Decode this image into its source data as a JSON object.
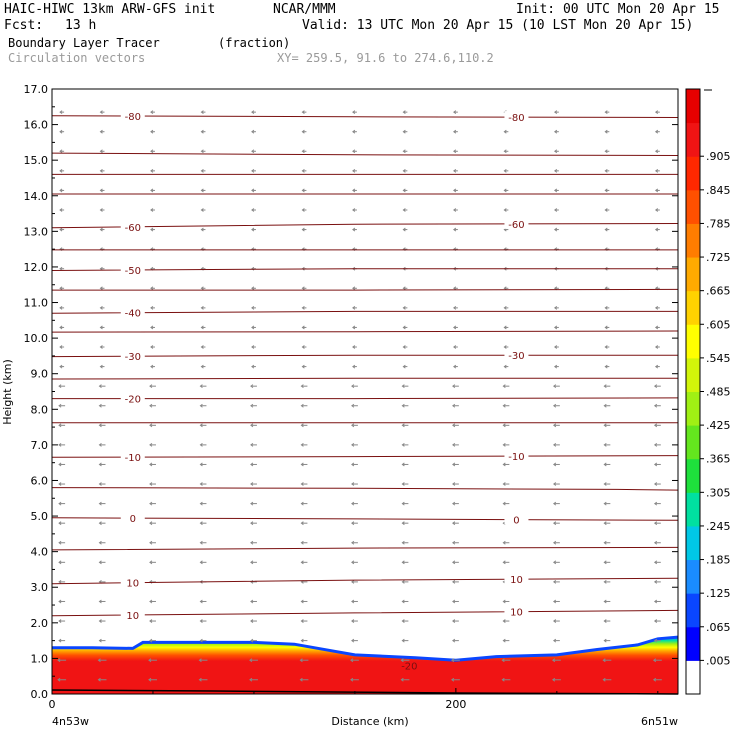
{
  "header": {
    "title": "HAIC-HIWC 13km ARW-GFS init",
    "org": "NCAR/MMM",
    "init": "Init: 00 UTC Mon 20 Apr 15",
    "fcst_label": "Fcst:",
    "fcst_value": "13 h",
    "valid": "Valid: 13 UTC Mon 20 Apr 15 (10 LST Mon 20 Apr 15)",
    "field": "Boundary Layer Tracer",
    "field_units": "(fraction)",
    "vectors": "Circulation vectors",
    "xy": "XY= 259.5, 91.6 to 274.6,110.2"
  },
  "colors": {
    "contour": "#7a1010",
    "vector": "#888888"
  },
  "chart_data": {
    "type": "heatmap",
    "ylabel": "Height (km)",
    "xlabel": "Distance (km)",
    "ylim": [
      0,
      17
    ],
    "xlim": [
      0,
      310
    ],
    "yticks": [
      "0.0",
      "1.0",
      "2.0",
      "3.0",
      "4.0",
      "5.0",
      "6.0",
      "7.0",
      "8.0",
      "9.0",
      "10.0",
      "11.0",
      "12.0",
      "13.0",
      "14.0",
      "15.0",
      "16.0",
      "17.0"
    ],
    "xticks": [
      "0",
      "200"
    ],
    "x_end_labels": {
      "left": "4n53w",
      "right": "6n51w"
    },
    "colorbar": {
      "labels": [
        ".005",
        ".065",
        ".125",
        ".185",
        ".245",
        ".305",
        ".365",
        ".425",
        ".485",
        ".545",
        ".605",
        ".665",
        ".725",
        ".785",
        ".845",
        ".905"
      ],
      "colors": [
        "#ffffff",
        "#0000ff",
        "#0a46ff",
        "#1a8cff",
        "#00c8e6",
        "#00e0a0",
        "#1ee03c",
        "#64e61e",
        "#a0f014",
        "#d2f50a",
        "#ffff00",
        "#ffd200",
        "#ffaa00",
        "#ff7d00",
        "#ff5000",
        "#ff2800",
        "#f01414",
        "#e60000"
      ]
    },
    "tracer_top_km": [
      {
        "x": 0,
        "z": 1.3
      },
      {
        "x": 20,
        "z": 1.3
      },
      {
        "x": 40,
        "z": 1.28
      },
      {
        "x": 45,
        "z": 1.45
      },
      {
        "x": 100,
        "z": 1.45
      },
      {
        "x": 120,
        "z": 1.4
      },
      {
        "x": 140,
        "z": 1.2
      },
      {
        "x": 150,
        "z": 1.1
      },
      {
        "x": 180,
        "z": 1.02
      },
      {
        "x": 200,
        "z": 0.95
      },
      {
        "x": 220,
        "z": 1.05
      },
      {
        "x": 250,
        "z": 1.1
      },
      {
        "x": 270,
        "z": 1.25
      },
      {
        "x": 290,
        "z": 1.38
      },
      {
        "x": 300,
        "z": 1.55
      },
      {
        "x": 310,
        "z": 1.6
      }
    ],
    "temperature_contours_C": [
      {
        "value": 10,
        "labels": [
          "10",
          "10"
        ],
        "heights": [
          [
            0,
            2.2
          ],
          [
            150,
            2.28
          ],
          [
            310,
            2.35
          ]
        ]
      },
      {
        "value": 10,
        "labels": [
          "10",
          "10"
        ],
        "heights": [
          [
            0,
            3.1
          ],
          [
            150,
            3.2
          ],
          [
            310,
            3.25
          ]
        ]
      },
      {
        "value": 0,
        "labels": [],
        "heights": [
          [
            0,
            4.05
          ],
          [
            150,
            4.1
          ],
          [
            310,
            4.12
          ]
        ]
      },
      {
        "value": 0,
        "labels": [
          "0",
          "0"
        ],
        "heights": [
          [
            0,
            4.95
          ],
          [
            150,
            4.92
          ],
          [
            310,
            4.88
          ]
        ]
      },
      {
        "value": -10,
        "labels": [],
        "heights": [
          [
            0,
            5.8
          ],
          [
            150,
            5.78
          ],
          [
            280,
            5.75
          ],
          [
            310,
            5.73
          ]
        ]
      },
      {
        "value": -10,
        "labels": [
          "-10",
          "-10"
        ],
        "heights": [
          [
            0,
            6.65
          ],
          [
            150,
            6.67
          ],
          [
            310,
            6.7
          ]
        ]
      },
      {
        "value": -20,
        "labels": [],
        "heights": [
          [
            0,
            7.62
          ],
          [
            150,
            7.62
          ],
          [
            310,
            7.62
          ]
        ]
      },
      {
        "value": -20,
        "labels": [
          "-20"
        ],
        "heights": [
          [
            0,
            8.3
          ],
          [
            150,
            8.3
          ],
          [
            310,
            8.32
          ]
        ]
      },
      {
        "value": -30,
        "labels": [],
        "heights": [
          [
            0,
            8.85
          ],
          [
            150,
            8.87
          ],
          [
            310,
            8.87
          ]
        ]
      },
      {
        "value": -30,
        "labels": [
          "-30",
          "-30"
        ],
        "heights": [
          [
            0,
            9.48
          ],
          [
            150,
            9.52
          ],
          [
            310,
            9.52
          ]
        ]
      },
      {
        "value": -40,
        "labels": [],
        "heights": [
          [
            0,
            10.17
          ],
          [
            150,
            10.18
          ],
          [
            310,
            10.2
          ]
        ]
      },
      {
        "value": -40,
        "labels": [
          "-40"
        ],
        "heights": [
          [
            0,
            10.7
          ],
          [
            150,
            10.75
          ],
          [
            310,
            10.75
          ]
        ]
      },
      {
        "value": -50,
        "labels": [],
        "heights": [
          [
            0,
            11.35
          ],
          [
            150,
            11.35
          ],
          [
            310,
            11.37
          ]
        ]
      },
      {
        "value": -50,
        "labels": [
          "-50"
        ],
        "heights": [
          [
            0,
            11.9
          ],
          [
            150,
            11.95
          ],
          [
            310,
            11.95
          ]
        ]
      },
      {
        "value": -60,
        "labels": [],
        "heights": [
          [
            0,
            12.48
          ],
          [
            150,
            12.48
          ],
          [
            310,
            12.48
          ]
        ]
      },
      {
        "value": -60,
        "labels": [
          "-60",
          "-60"
        ],
        "heights": [
          [
            0,
            13.1
          ],
          [
            150,
            13.2
          ],
          [
            310,
            13.22
          ]
        ]
      },
      {
        "value": -70,
        "labels": [],
        "heights": [
          [
            0,
            14.05
          ],
          [
            150,
            14.05
          ],
          [
            310,
            14.05
          ]
        ]
      },
      {
        "value": -70,
        "labels": [],
        "heights": [
          [
            0,
            14.6
          ],
          [
            150,
            14.6
          ],
          [
            310,
            14.6
          ]
        ]
      },
      {
        "value": -70,
        "labels": [],
        "heights": [
          [
            0,
            15.2
          ],
          [
            150,
            15.15
          ],
          [
            310,
            15.13
          ]
        ]
      },
      {
        "value": -80,
        "labels": [
          "-80",
          "-80"
        ],
        "heights": [
          [
            0,
            16.25
          ],
          [
            150,
            16.22
          ],
          [
            310,
            16.2
          ]
        ]
      }
    ],
    "extra_labels": [
      {
        "text": "-20",
        "x": 175,
        "z": 0.8
      }
    ]
  }
}
